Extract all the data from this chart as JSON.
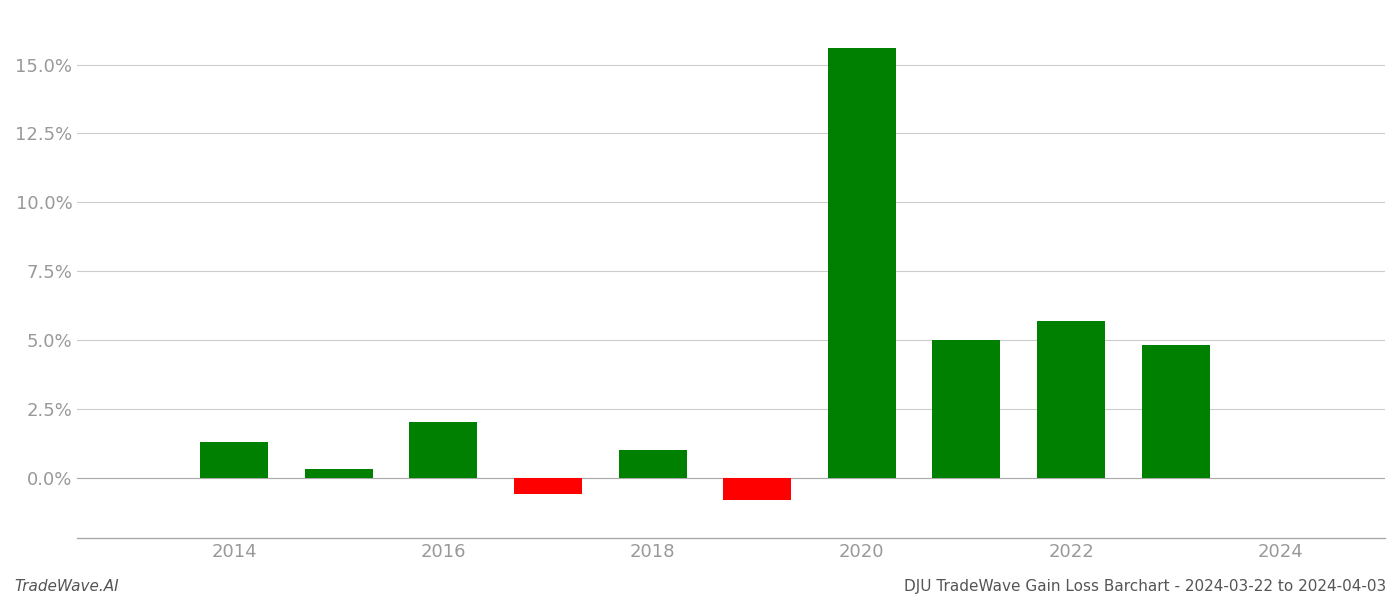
{
  "years": [
    2014,
    2015,
    2016,
    2017,
    2018,
    2019,
    2020,
    2021,
    2022,
    2023
  ],
  "values": [
    0.013,
    0.003,
    0.02,
    -0.006,
    0.01,
    -0.008,
    0.156,
    0.05,
    0.057,
    0.048
  ],
  "colors": [
    "#008000",
    "#008000",
    "#008000",
    "#ff0000",
    "#008000",
    "#ff0000",
    "#008000",
    "#008000",
    "#008000",
    "#008000"
  ],
  "footer_left": "TradeWave.AI",
  "footer_right": "DJU TradeWave Gain Loss Barchart - 2024-03-22 to 2024-04-03",
  "ylim_min": -0.022,
  "ylim_max": 0.168,
  "yticks": [
    0.0,
    0.025,
    0.05,
    0.075,
    0.1,
    0.125,
    0.15
  ],
  "bar_width": 0.65,
  "background_color": "#ffffff",
  "grid_color": "#cccccc",
  "tick_color": "#999999",
  "spine_color": "#aaaaaa",
  "footer_fontsize": 11,
  "tick_fontsize": 13
}
